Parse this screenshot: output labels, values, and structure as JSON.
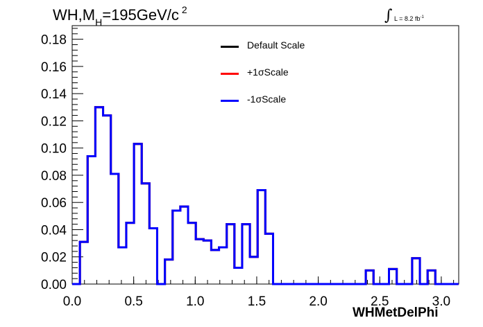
{
  "title": {
    "main": "WH,M",
    "sub": "H",
    "rest": "=195GeV/c",
    "sup": "2"
  },
  "lumi": {
    "symbol": "∫",
    "text": "L = 8.2 fb",
    "sup": "-1"
  },
  "legend": [
    {
      "label": "Default Scale",
      "color": "#000000"
    },
    {
      "label": "+1σScale",
      "color": "#ff0000"
    },
    {
      "label": "-1σScale",
      "color": "#0000ff"
    }
  ],
  "chart_data": {
    "type": "line",
    "style": "step-histogram",
    "title": "WH,MH=195GeV/c2",
    "xlabel": "WHMetDelPhi",
    "ylabel": "",
    "xlim": [
      0,
      3.1416
    ],
    "ylim": [
      0,
      0.19
    ],
    "x_ticks": [
      "0.0",
      "0.5",
      "1.0",
      "1.5",
      "2.0",
      "2.5",
      "3.0"
    ],
    "y_ticks": [
      "0.00",
      "0.02",
      "0.04",
      "0.06",
      "0.08",
      "0.10",
      "0.12",
      "0.14",
      "0.16",
      "0.18"
    ],
    "bin_width": 0.0628,
    "bin_edges_start": 0,
    "series": [
      {
        "name": "Default Scale",
        "color": "#000000",
        "values": [
          0,
          0.031,
          0.094,
          0.13,
          0.124,
          0.081,
          0.027,
          0.045,
          0.103,
          0.074,
          0.041,
          0,
          0.018,
          0.054,
          0.057,
          0.045,
          0.033,
          0.032,
          0.025,
          0.027,
          0.044,
          0.012,
          0.044,
          0.02,
          0.069,
          0.037,
          0,
          0,
          0,
          0,
          0,
          0,
          0,
          0,
          0,
          0,
          0,
          0,
          0.01,
          0,
          0,
          0.011,
          0,
          0,
          0.019,
          0,
          0.01,
          0,
          0,
          0
        ]
      },
      {
        "name": "+1σScale",
        "color": "#ff0000",
        "values": [
          0,
          0.031,
          0.094,
          0.13,
          0.124,
          0.081,
          0.027,
          0.045,
          0.103,
          0.074,
          0.041,
          0,
          0.018,
          0.054,
          0.057,
          0.045,
          0.033,
          0.032,
          0.025,
          0.027,
          0.044,
          0.012,
          0.044,
          0.02,
          0.069,
          0.037,
          0,
          0,
          0,
          0,
          0,
          0,
          0,
          0,
          0,
          0,
          0,
          0,
          0.01,
          0,
          0,
          0.011,
          0,
          0,
          0.019,
          0,
          0.01,
          0,
          0,
          0
        ]
      },
      {
        "name": "-1σScale",
        "color": "#0000ff",
        "values": [
          0,
          0.031,
          0.094,
          0.13,
          0.124,
          0.081,
          0.027,
          0.045,
          0.103,
          0.074,
          0.041,
          0,
          0.018,
          0.054,
          0.057,
          0.045,
          0.033,
          0.032,
          0.025,
          0.027,
          0.044,
          0.012,
          0.044,
          0.02,
          0.069,
          0.037,
          0,
          0,
          0,
          0,
          0,
          0,
          0,
          0,
          0,
          0,
          0,
          0,
          0.01,
          0,
          0,
          0.011,
          0,
          0,
          0.019,
          0,
          0.01,
          0,
          0,
          0
        ]
      }
    ],
    "grid": false,
    "legend_position": "top-center"
  }
}
